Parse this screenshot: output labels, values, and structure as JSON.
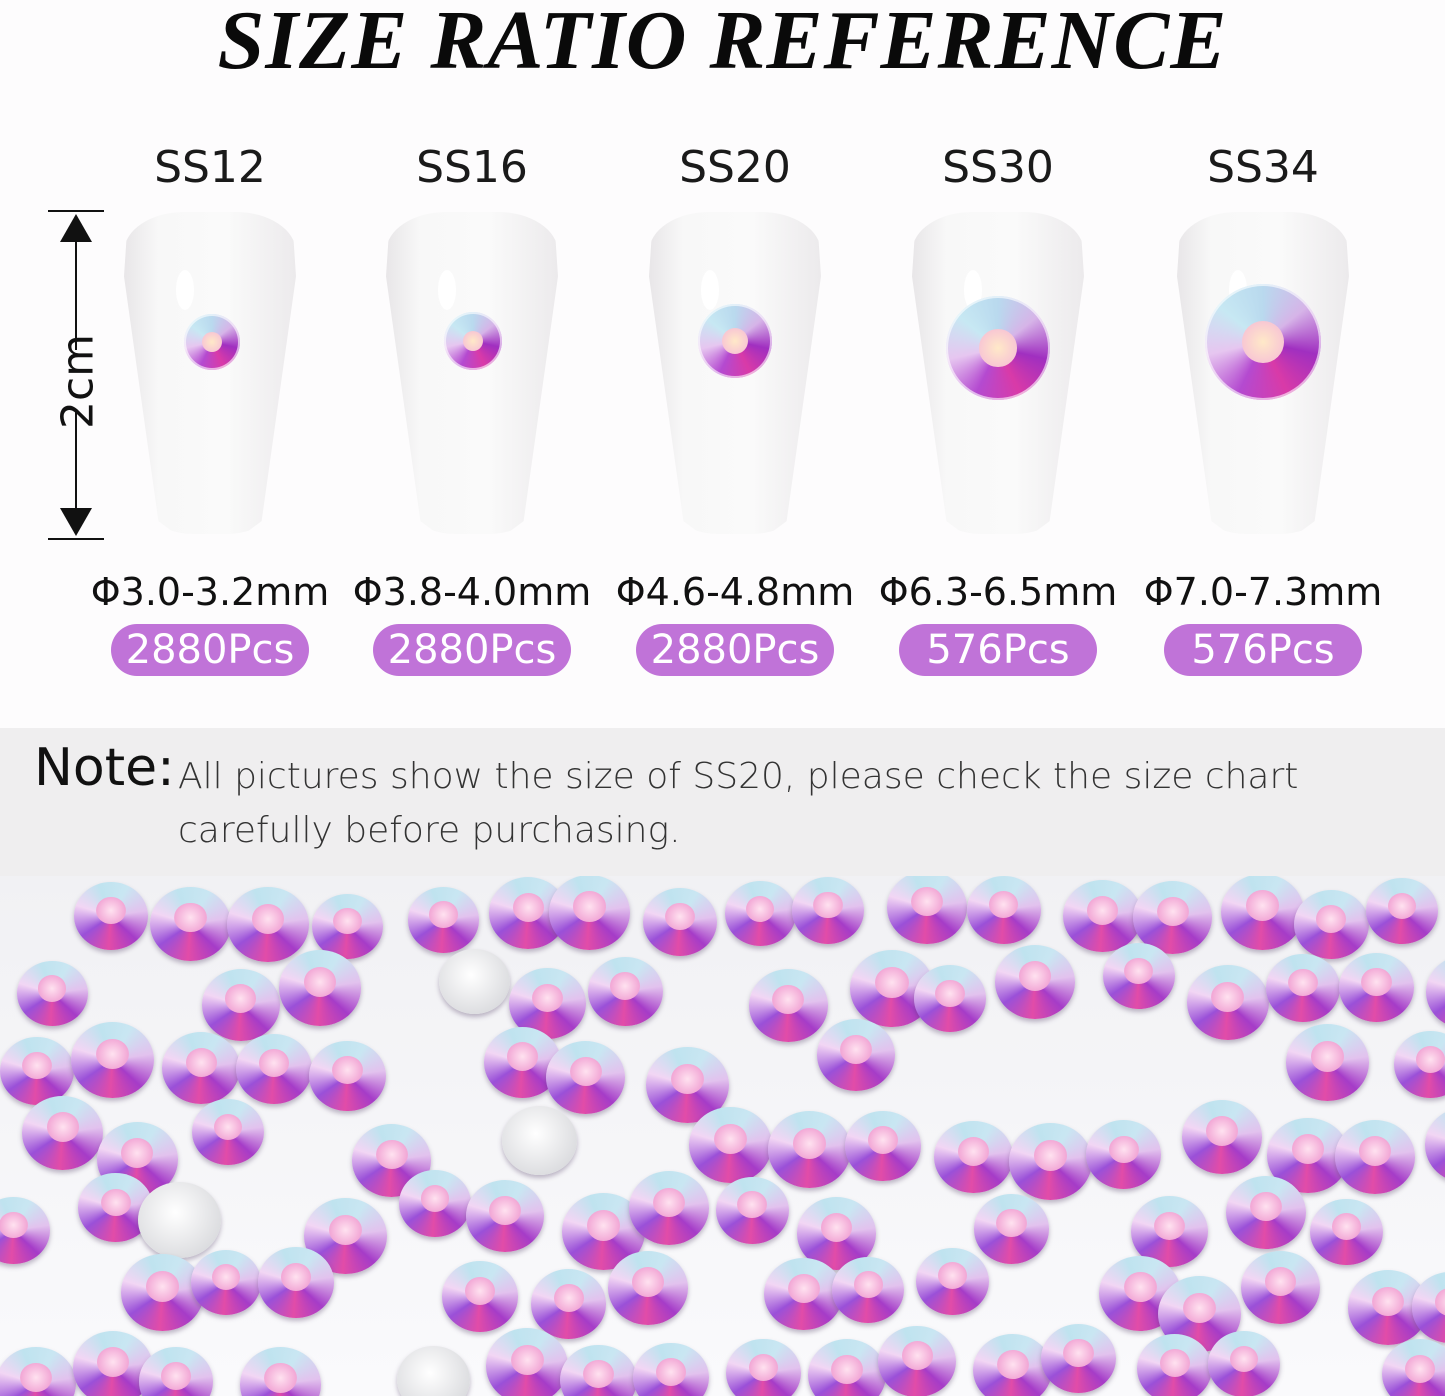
{
  "title": "SIZE RATIO REFERENCE",
  "ruler_label": "2cm",
  "accent_color": "#c073d8",
  "sizes": [
    {
      "name": "SS12",
      "diameter": "Φ3.0-3.2mm",
      "count": "2880Pcs"
    },
    {
      "name": "SS16",
      "diameter": "Φ3.8-4.0mm",
      "count": "2880Pcs"
    },
    {
      "name": "SS20",
      "diameter": "Φ4.6-4.8mm",
      "count": "2880Pcs"
    },
    {
      "name": "SS30",
      "diameter": "Φ6.3-6.5mm",
      "count": "576Pcs"
    },
    {
      "name": "SS34",
      "diameter": "Φ7.0-7.3mm",
      "count": "576Pcs"
    }
  ],
  "note": {
    "label": "Note:",
    "text": "All pictures show the size of SS20, please check the size chart carefully before purchasing."
  }
}
